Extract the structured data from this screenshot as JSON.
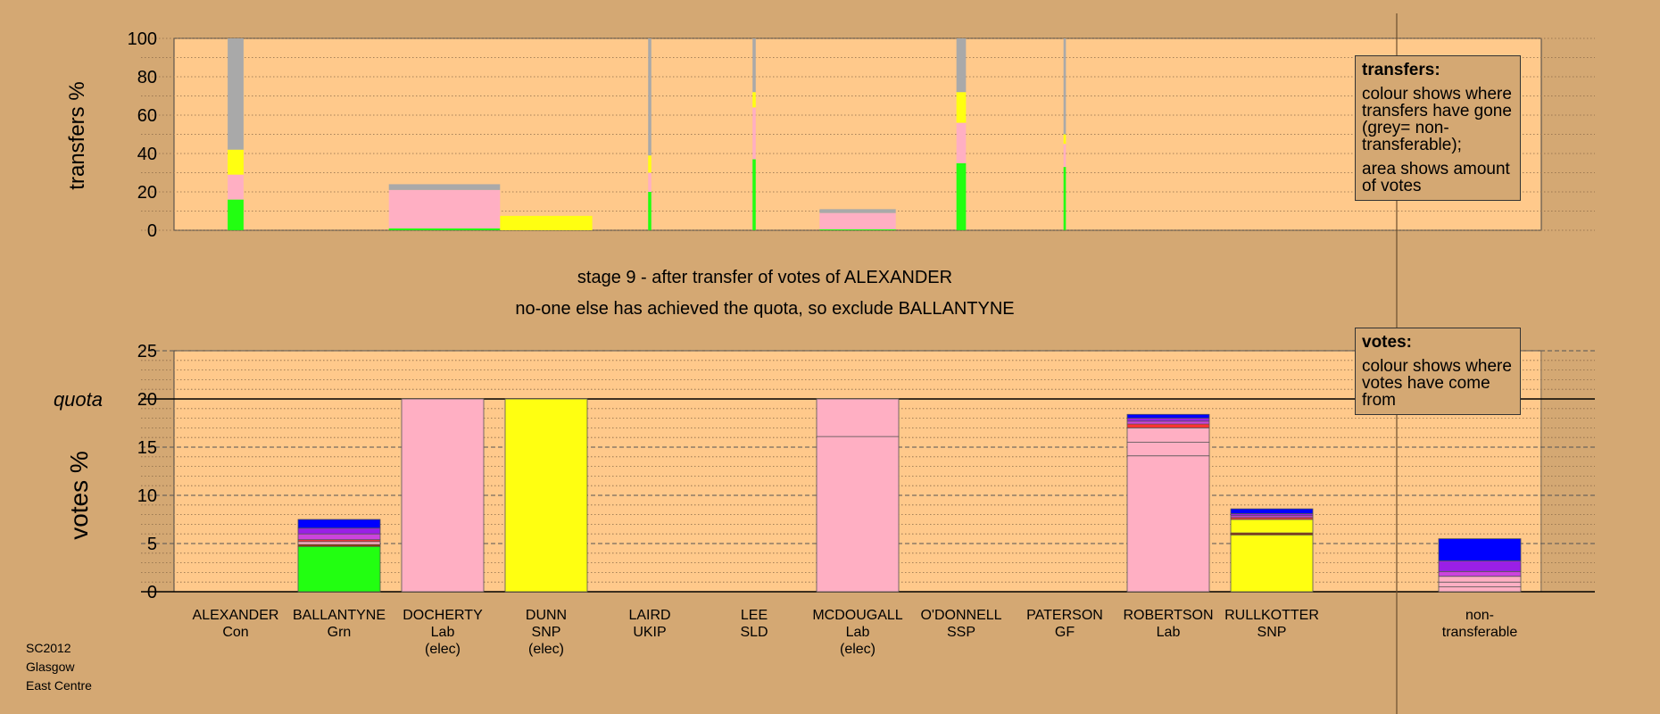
{
  "header": {
    "stage": "stage 9 - after transfer of votes of ALEXANDER",
    "note": "no-one else has achieved the quota, so exclude BALLANTYNE"
  },
  "footer": [
    "SC2012",
    "Glasgow",
    "East Centre"
  ],
  "legend_transfers": {
    "title": "transfers:",
    "line1": "colour shows where transfers have gone (grey= non-transferable);",
    "line2": "area shows amount of votes"
  },
  "legend_votes": {
    "title": "votes:",
    "line1": "colour shows where votes have come from"
  },
  "colors": {
    "background": "#d4a873",
    "plot": "#ffc98b",
    "Grn": "#22ff11",
    "Lab": "#ffafc3",
    "SNP": "#ffff11",
    "Con": "#0000ff",
    "Con2": "#4422ff",
    "UKIP": "#9a1fe6",
    "SLD": "#cc44dd",
    "SSP": "#ff3333",
    "GF": "#993300",
    "grey": "#a9a9a9"
  },
  "candidates": [
    {
      "name": "ALEXANDER",
      "party": "Con",
      "status": ""
    },
    {
      "name": "BALLANTYNE",
      "party": "Grn",
      "status": ""
    },
    {
      "name": "DOCHERTY",
      "party": "Lab",
      "status": "(elec)"
    },
    {
      "name": "DUNN",
      "party": "SNP",
      "status": "(elec)"
    },
    {
      "name": "LAIRD",
      "party": "UKIP",
      "status": ""
    },
    {
      "name": "LEE",
      "party": "SLD",
      "status": ""
    },
    {
      "name": "MCDOUGALL",
      "party": "Lab",
      "status": "(elec)"
    },
    {
      "name": "O'DONNELL",
      "party": "SSP",
      "status": ""
    },
    {
      "name": "PATERSON",
      "party": "GF",
      "status": ""
    },
    {
      "name": "ROBERTSON",
      "party": "Lab",
      "status": ""
    },
    {
      "name": "RULLKOTTER",
      "party": "SNP",
      "status": ""
    },
    {
      "name": "non-",
      "party": "transferable",
      "status": ""
    }
  ],
  "chart_data": [
    {
      "type": "bar",
      "title": "",
      "ylabel": "transfers %",
      "ylim": [
        0,
        100
      ],
      "yticks": [
        0,
        20,
        40,
        60,
        80,
        100
      ],
      "grid": true,
      "width_meaning": "amount of votes",
      "bars": [
        {
          "candidate": "ALEXANDER",
          "width": 10,
          "segments": [
            {
              "color": "Grn",
              "from": 0,
              "to": 16
            },
            {
              "color": "Lab",
              "from": 16,
              "to": 29
            },
            {
              "color": "SNP",
              "from": 29,
              "to": 42
            },
            {
              "color": "grey",
              "from": 42,
              "to": 100
            }
          ]
        },
        {
          "candidate": "DOCHERTY",
          "width": 70,
          "segments": [
            {
              "color": "Grn",
              "from": 0,
              "to": 1
            },
            {
              "color": "Lab",
              "from": 1,
              "to": 21
            },
            {
              "color": "grey",
              "from": 21,
              "to": 24
            }
          ]
        },
        {
          "candidate": "DUNN",
          "width": 58,
          "segments": [
            {
              "color": "SNP",
              "from": 0,
              "to": 7.5
            }
          ]
        },
        {
          "candidate": "LAIRD",
          "width": 2,
          "segments": [
            {
              "color": "Grn",
              "from": 0,
              "to": 20
            },
            {
              "color": "Lab",
              "from": 20,
              "to": 30
            },
            {
              "color": "SNP",
              "from": 30,
              "to": 39
            },
            {
              "color": "grey",
              "from": 39,
              "to": 100
            }
          ]
        },
        {
          "candidate": "LEE",
          "width": 2,
          "segments": [
            {
              "color": "Grn",
              "from": 0,
              "to": 37
            },
            {
              "color": "Lab",
              "from": 37,
              "to": 64
            },
            {
              "color": "SNP",
              "from": 64,
              "to": 72
            },
            {
              "color": "grey",
              "from": 72,
              "to": 100
            }
          ]
        },
        {
          "candidate": "MCDOUGALL",
          "width": 48,
          "segments": [
            {
              "color": "Grn",
              "from": 0,
              "to": 0.5
            },
            {
              "color": "Lab",
              "from": 0.5,
              "to": 9
            },
            {
              "color": "grey",
              "from": 9,
              "to": 11
            }
          ]
        },
        {
          "candidate": "O'DONNELL",
          "width": 6,
          "segments": [
            {
              "color": "Grn",
              "from": 0,
              "to": 35
            },
            {
              "color": "Lab",
              "from": 35,
              "to": 56
            },
            {
              "color": "SNP",
              "from": 56,
              "to": 72
            },
            {
              "color": "grey",
              "from": 72,
              "to": 100
            }
          ]
        },
        {
          "candidate": "PATERSON",
          "width": 1.5,
          "segments": [
            {
              "color": "Grn",
              "from": 0,
              "to": 33
            },
            {
              "color": "Lab",
              "from": 33,
              "to": 45
            },
            {
              "color": "SNP",
              "from": 45,
              "to": 50
            },
            {
              "color": "grey",
              "from": 50,
              "to": 100
            }
          ]
        }
      ]
    },
    {
      "type": "bar",
      "title": "",
      "ylabel": "votes %",
      "ylim": [
        0,
        25
      ],
      "yticks": [
        0,
        5,
        10,
        15,
        20,
        25
      ],
      "quota_label": "quota",
      "quota": 20,
      "grid": true,
      "stacked": true,
      "bars": [
        {
          "candidate": "ALEXANDER",
          "segments": []
        },
        {
          "candidate": "BALLANTYNE",
          "segments": [
            {
              "color": "Grn",
              "value": 4.7
            },
            {
              "color": "GF",
              "value": 0.2
            },
            {
              "color": "Lab",
              "value": 0.3
            },
            {
              "color": "SSP",
              "value": 0.2
            },
            {
              "color": "SLD",
              "value": 0.6
            },
            {
              "color": "UKIP",
              "value": 0.6
            },
            {
              "color": "Con",
              "value": 0.9
            }
          ]
        },
        {
          "candidate": "DOCHERTY",
          "segments": [
            {
              "color": "Lab",
              "value": 20
            }
          ]
        },
        {
          "candidate": "DUNN",
          "segments": [
            {
              "color": "SNP",
              "value": 20
            }
          ]
        },
        {
          "candidate": "LAIRD",
          "segments": []
        },
        {
          "candidate": "LEE",
          "segments": []
        },
        {
          "candidate": "MCDOUGALL",
          "segments": [
            {
              "color": "Lab",
              "value": 16.1
            },
            {
              "color": "Lab",
              "value": 3.9
            }
          ]
        },
        {
          "candidate": "O'DONNELL",
          "segments": []
        },
        {
          "candidate": "PATERSON",
          "segments": []
        },
        {
          "candidate": "ROBERTSON",
          "segments": [
            {
              "color": "Lab",
              "value": 14.1
            },
            {
              "color": "Lab",
              "value": 1.4
            },
            {
              "color": "Lab",
              "value": 1.5
            },
            {
              "color": "SSP",
              "value": 0.4
            },
            {
              "color": "SLD",
              "value": 0.3
            },
            {
              "color": "UKIP",
              "value": 0.3
            },
            {
              "color": "Con",
              "value": 0.4
            }
          ]
        },
        {
          "candidate": "RULLKOTTER",
          "segments": [
            {
              "color": "SNP",
              "value": 5.9
            },
            {
              "color": "GF",
              "value": 0.2
            },
            {
              "color": "SNP",
              "value": 1.4
            },
            {
              "color": "SSP",
              "value": 0.2
            },
            {
              "color": "SLD",
              "value": 0.2
            },
            {
              "color": "UKIP",
              "value": 0.2
            },
            {
              "color": "Con",
              "value": 0.5
            }
          ]
        },
        {
          "candidate": "non-transferable",
          "segments": [
            {
              "color": "Lab",
              "value": 0.5
            },
            {
              "color": "Lab",
              "value": 0.5
            },
            {
              "color": "Lab",
              "value": 0.6
            },
            {
              "color": "SLD",
              "value": 0.5
            },
            {
              "color": "UKIP",
              "value": 1.1
            },
            {
              "color": "Con",
              "value": 2.3
            }
          ]
        }
      ]
    }
  ]
}
